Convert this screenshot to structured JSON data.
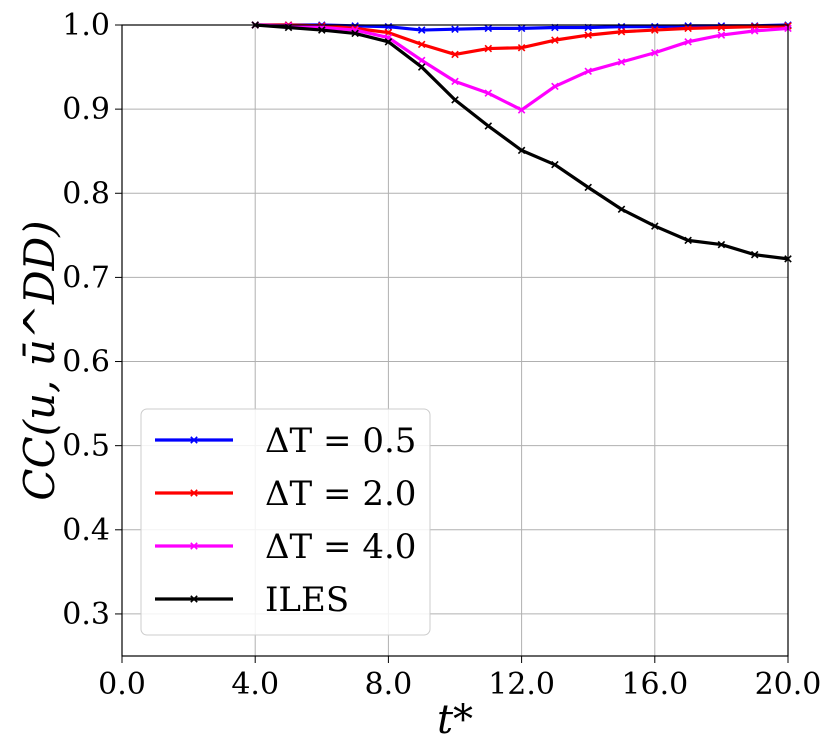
{
  "chart_data": {
    "type": "line",
    "xlabel": "t*",
    "ylabel": "CC(u, ū^DD)",
    "xlim": [
      0,
      20
    ],
    "ylim": [
      0.25,
      1.0
    ],
    "grid": true,
    "legend_position": "lower-left",
    "xticks": [
      0,
      4,
      8,
      12,
      16,
      20
    ],
    "xtick_labels": [
      "0.0",
      "4.0",
      "8.0",
      "12.0",
      "16.0",
      "20.0"
    ],
    "yticks": [
      0.3,
      0.4,
      0.5,
      0.6,
      0.7,
      0.8,
      0.9,
      1.0
    ],
    "ytick_labels": [
      "0.3",
      "0.4",
      "0.5",
      "0.6",
      "0.7",
      "0.8",
      "0.9",
      "1.0"
    ],
    "x": [
      4,
      5,
      6,
      7,
      8,
      9,
      10,
      11,
      12,
      13,
      14,
      15,
      16,
      17,
      18,
      19,
      20
    ],
    "series": [
      {
        "name": "ΔT = 0.5",
        "color": "#0000ff",
        "values": [
          1.0,
          1.0,
          1.0,
          0.999,
          0.998,
          0.994,
          0.995,
          0.996,
          0.996,
          0.997,
          0.997,
          0.998,
          0.998,
          0.999,
          0.999,
          0.999,
          1.0
        ]
      },
      {
        "name": "ΔT = 2.0",
        "color": "#ff0000",
        "values": [
          1.0,
          1.0,
          0.999,
          0.996,
          0.991,
          0.977,
          0.965,
          0.972,
          0.973,
          0.982,
          0.988,
          0.992,
          0.994,
          0.996,
          0.997,
          0.998,
          0.999
        ]
      },
      {
        "name": "ΔT = 4.0",
        "color": "#ff00ff",
        "values": [
          1.0,
          0.999,
          0.997,
          0.994,
          0.985,
          0.958,
          0.933,
          0.919,
          0.899,
          0.927,
          0.945,
          0.956,
          0.967,
          0.98,
          0.988,
          0.993,
          0.996
        ]
      },
      {
        "name": "ILES",
        "color": "#000000",
        "values": [
          1.0,
          0.997,
          0.994,
          0.99,
          0.98,
          0.95,
          0.911,
          0.88,
          0.851,
          0.834,
          0.807,
          0.781,
          0.761,
          0.744,
          0.739,
          0.727,
          0.722
        ]
      }
    ]
  }
}
